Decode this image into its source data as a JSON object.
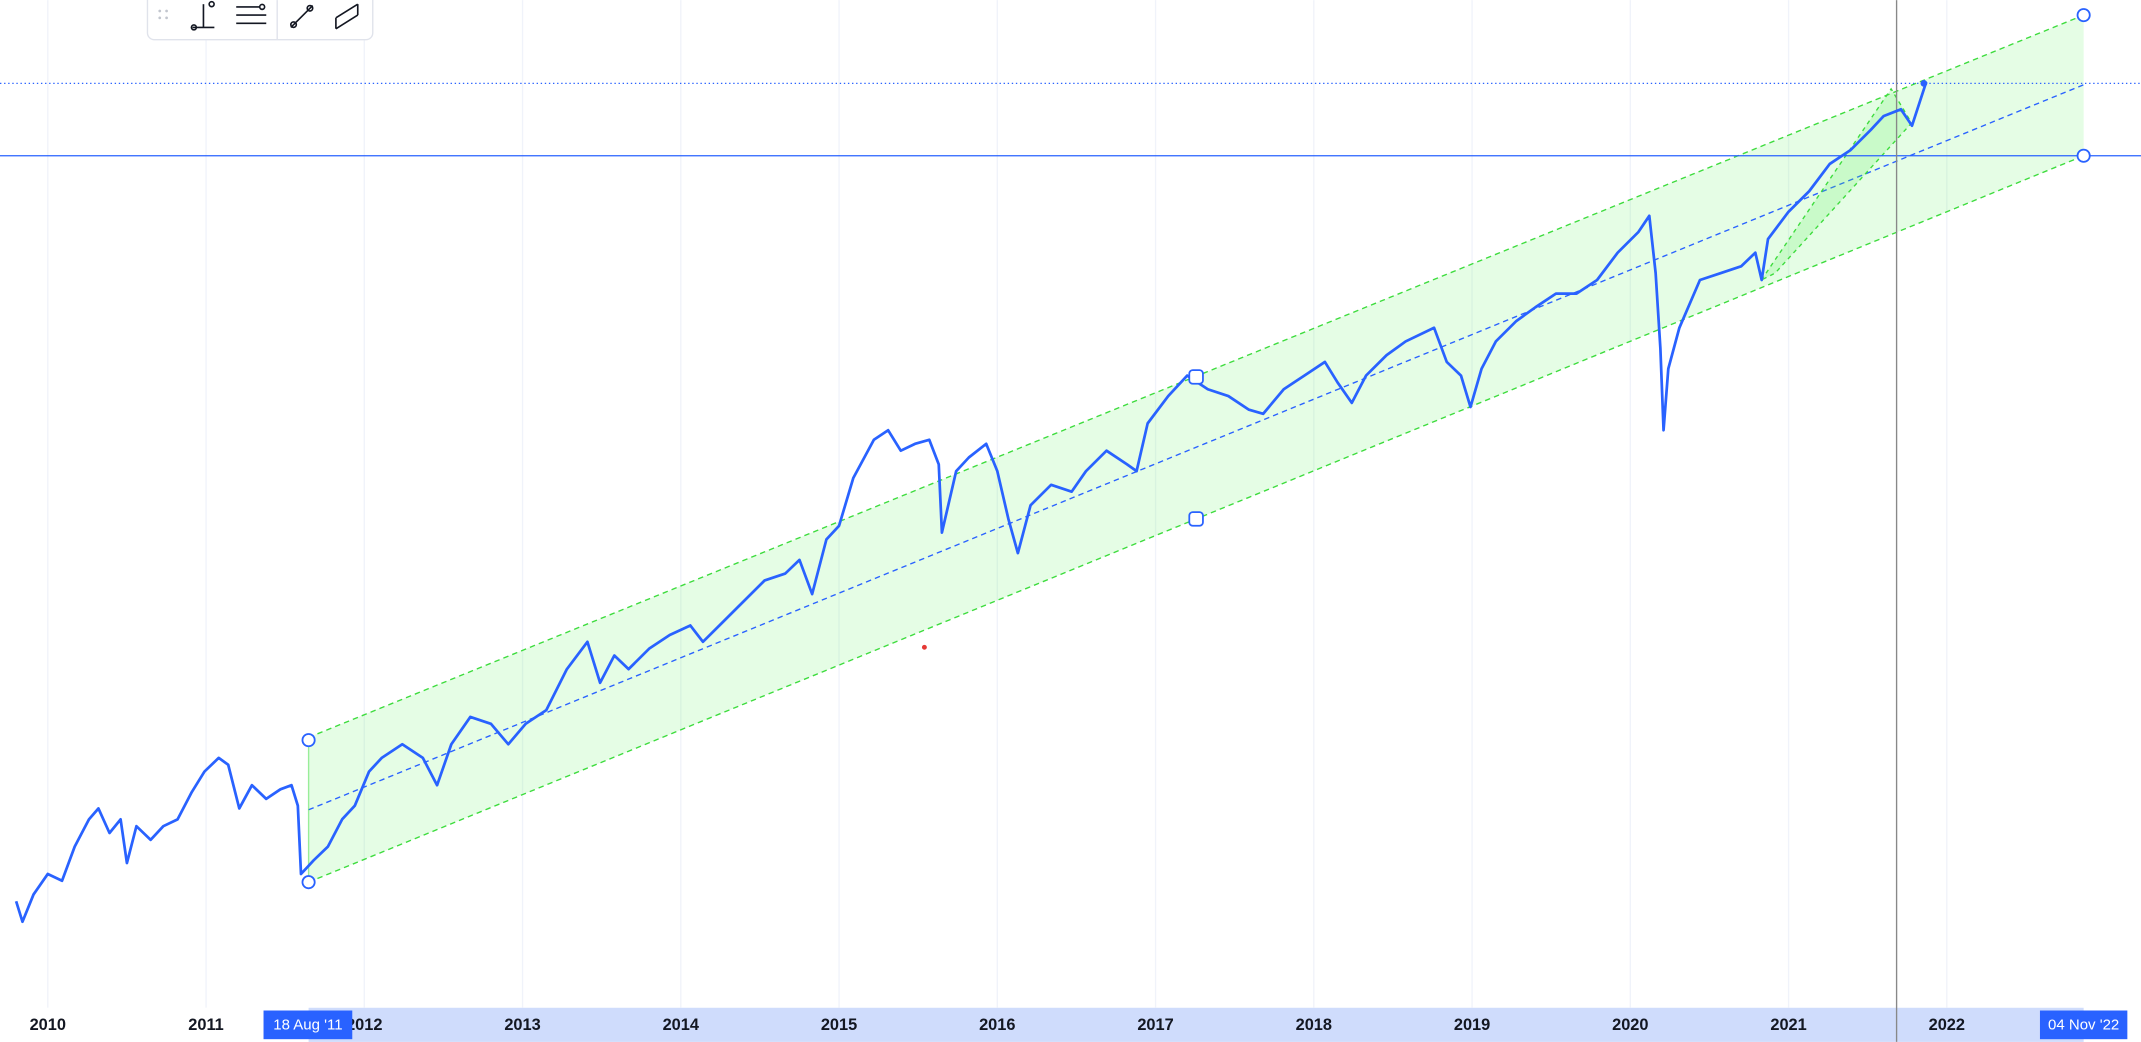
{
  "chart_data": {
    "type": "line",
    "x": [
      2009.8,
      2009.84,
      2009.91,
      2010.0,
      2010.09,
      2010.17,
      2010.26,
      2010.32,
      2010.39,
      2010.46,
      2010.5,
      2010.56,
      2010.65,
      2010.73,
      2010.82,
      2010.91,
      2010.99,
      2011.08,
      2011.14,
      2011.21,
      2011.29,
      2011.38,
      2011.47,
      2011.54,
      2011.58,
      2011.6,
      2011.64,
      2011.68,
      2011.77,
      2011.86,
      2011.94,
      2012.03,
      2012.11,
      2012.24,
      2012.37,
      2012.46,
      2012.55,
      2012.67,
      2012.8,
      2012.91,
      2013.02,
      2013.15,
      2013.28,
      2013.41,
      2013.49,
      2013.58,
      2013.67,
      2013.8,
      2013.93,
      2014.06,
      2014.14,
      2014.27,
      2014.4,
      2014.53,
      2014.66,
      2014.75,
      2014.83,
      2014.92,
      2015.0,
      2015.09,
      2015.22,
      2015.31,
      2015.39,
      2015.48,
      2015.57,
      2015.63,
      2015.65,
      2015.74,
      2015.82,
      2015.93,
      2016.0,
      2016.07,
      2016.13,
      2016.21,
      2016.34,
      2016.47,
      2016.56,
      2016.69,
      2016.82,
      2016.88,
      2016.95,
      2017.08,
      2017.2,
      2017.33,
      2017.46,
      2017.59,
      2017.68,
      2017.81,
      2017.94,
      2018.07,
      2018.15,
      2018.24,
      2018.33,
      2018.46,
      2018.58,
      2018.76,
      2018.84,
      2018.93,
      2018.99,
      2019.06,
      2019.15,
      2019.28,
      2019.4,
      2019.53,
      2019.66,
      2019.79,
      2019.92,
      2020.05,
      2020.12,
      2020.16,
      2020.19,
      2020.21,
      2020.24,
      2020.31,
      2020.44,
      2020.57,
      2020.7,
      2020.79,
      2020.83,
      2020.87,
      2021.0,
      2021.13,
      2021.26,
      2021.39,
      2021.52,
      2021.6,
      2021.71,
      2021.78,
      2021.87
    ],
    "series": [
      {
        "color": "#2962ff",
        "values": [
          103,
          88,
          108,
          123,
          118,
          143,
          163,
          171,
          153,
          163,
          131,
          158,
          148,
          158,
          163,
          183,
          198,
          208,
          203,
          171,
          188,
          178,
          185,
          188,
          173,
          123,
          128,
          133,
          143,
          163,
          173,
          198,
          208,
          218,
          208,
          188,
          218,
          238,
          233,
          218,
          233,
          243,
          273,
          293,
          263,
          283,
          273,
          288,
          298,
          305,
          293,
          308,
          323,
          338,
          343,
          353,
          328,
          368,
          378,
          413,
          441,
          448,
          433,
          438,
          441,
          423,
          373,
          418,
          428,
          438,
          418,
          383,
          358,
          393,
          408,
          403,
          418,
          433,
          423,
          418,
          453,
          473,
          488,
          478,
          473,
          463,
          460,
          478,
          488,
          498,
          483,
          468,
          488,
          503,
          513,
          523,
          498,
          488,
          465,
          493,
          513,
          528,
          538,
          548,
          548,
          558,
          578,
          593,
          605,
          563,
          508,
          448,
          493,
          523,
          558,
          563,
          568,
          578,
          558,
          588,
          608,
          623,
          643,
          653,
          668,
          678,
          683,
          671,
          703
        ]
      }
    ],
    "xlim": [
      2009.698,
      2023.227
    ],
    "xticks": [
      2010,
      2011,
      2012,
      2013,
      2014,
      2015,
      2016,
      2017,
      2018,
      2019,
      2020,
      2021,
      2022
    ],
    "ylim": [
      0,
      763
    ],
    "grid": true,
    "range_labels": [
      "18 Aug '11",
      "04 Nov '22"
    ]
  }
}
